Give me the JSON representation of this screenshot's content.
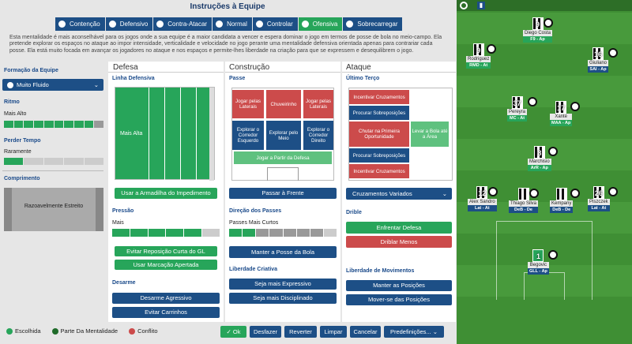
{
  "title": "Instruções à Equipe",
  "mentalities": [
    {
      "label": "Contenção",
      "active": false
    },
    {
      "label": "Defensivo",
      "active": false
    },
    {
      "label": "Contra-Atacar",
      "active": false
    },
    {
      "label": "Normal",
      "active": false
    },
    {
      "label": "Controlar",
      "active": false
    },
    {
      "label": "Ofensiva",
      "active": true
    },
    {
      "label": "Sobrecarregar",
      "active": false
    }
  ],
  "description": "Esta mentalidade é mais aconselhável para os jogos onde a sua equipe é a maior candidata a vencer e espera dominar o jogo em termos de posse de bola no meio-campo. Ela pretende explorar os espaços no ataque ao impor intensidade, verticalidade e velocidade no jogo perante uma mentalidade defensiva orientada apenas para contrariar cada posse. Ela está muito focada em avançar os jogadores no ataque e nos espaços e permite-lhes liberdade na criação para que se expressem e desequilibrem o jogo.",
  "left": {
    "formation_label": "Formação da Equipe",
    "formation_value": "Muito Fluido",
    "ritmo_label": "Ritmo",
    "ritmo_value": "Mais Alto",
    "perder_label": "Perder Tempo",
    "perder_value": "Raramente",
    "comprimento_label": "Comprimento",
    "comprimento_value": "Razoavelmente Estreito"
  },
  "defesa": {
    "header": "Defesa",
    "linha_label": "Linha Defensiva",
    "linha_value": "Mais Alta",
    "btn_armadilha": "Usar a Armadilha do Impedimento",
    "pressao_label": "Pressão",
    "pressao_value": "Mais",
    "btn_evitar": "Evitar Reposição Curta do GL",
    "btn_marcacao": "Usar Marcação Apertada",
    "desarme_label": "Desarme",
    "btn_desarme": "Desarme Agressivo",
    "btn_carrinhos": "Evitar Carrinhos"
  },
  "construcao": {
    "header": "Construção",
    "passe_label": "Passe",
    "cells": {
      "a": "Jogar pelas Laterais",
      "b": "Chuveirinho",
      "c": "Jogar pelas Laterais",
      "d": "Explorar o Corredor Esquerdo",
      "e": "Explorar pelo Meio",
      "f": "Explorar o Corredor Direito",
      "g": "Jogar a Partir da Defesa"
    },
    "btn_frente": "Passar à Frente",
    "direcao_label": "Direção dos Passes",
    "direcao_value": "Passes Mais Curtos",
    "btn_posse": "Manter a Posse da Bola",
    "liberdade_label": "Liberdade Criativa",
    "btn_expressivo": "Seja mais Expressivo",
    "btn_disciplinado": "Seja mais Disciplinado"
  },
  "ataque": {
    "header": "Ataque",
    "terco_label": "Último Terço",
    "cells": {
      "a": "Incentivar Cruzamentos",
      "b": "Procurar Sobreposições",
      "c": "Chutar na Primeira Oportunidade",
      "d": "Levar a Bola até a Área",
      "e": "Procurar Sobreposições",
      "f": "Incentivar Cruzamentos"
    },
    "cruzamentos_value": "Cruzamentos Variados",
    "drible_label": "Drible",
    "btn_enfrentar": "Enfrentar Defesa",
    "btn_driblar": "Driblar Menos",
    "movimentos_label": "Liberdade de Movimentos",
    "btn_manter": "Manter as Posições",
    "btn_mover": "Mover-se das Posições"
  },
  "legend": [
    {
      "label": "Escolhida",
      "color": "#27a55a"
    },
    {
      "label": "Parte Da Mentalidade",
      "color": "#1f6b2a"
    },
    {
      "label": "Conflito",
      "color": "#cc4b4b"
    }
  ],
  "footer": {
    "ok": "Ok",
    "desfazer": "Desfazer",
    "reverter": "Reverter",
    "limpar": "Limpar",
    "cancelar": "Cancelar",
    "predefinicoes": "Predefinições..."
  },
  "players": [
    {
      "number": "9",
      "name": "Diego Costa",
      "role": "F9 - Ap"
    },
    {
      "number": "9",
      "name": "Rodriguez",
      "role": "RMD - At"
    },
    {
      "number": "16",
      "name": "Giuliano",
      "role": "SAI - Ap"
    },
    {
      "number": "37",
      "name": "Pereyra",
      "role": "MC - At"
    },
    {
      "number": "17",
      "name": "Xanté",
      "role": "MAA - Ap"
    },
    {
      "number": "8",
      "name": "Marchisio",
      "role": "ArR - Ap"
    },
    {
      "number": "12",
      "name": "Alex Sandro",
      "role": "Lat - At"
    },
    {
      "number": "",
      "name": "Thiago Silva",
      "role": "DeB - De"
    },
    {
      "number": "",
      "name": "Kempany",
      "role": "DeB - De"
    },
    {
      "number": "26",
      "name": "Piszczek",
      "role": "Lat - At"
    },
    {
      "number": "1",
      "name": "Begovic",
      "role": "GLL - Ap"
    }
  ]
}
